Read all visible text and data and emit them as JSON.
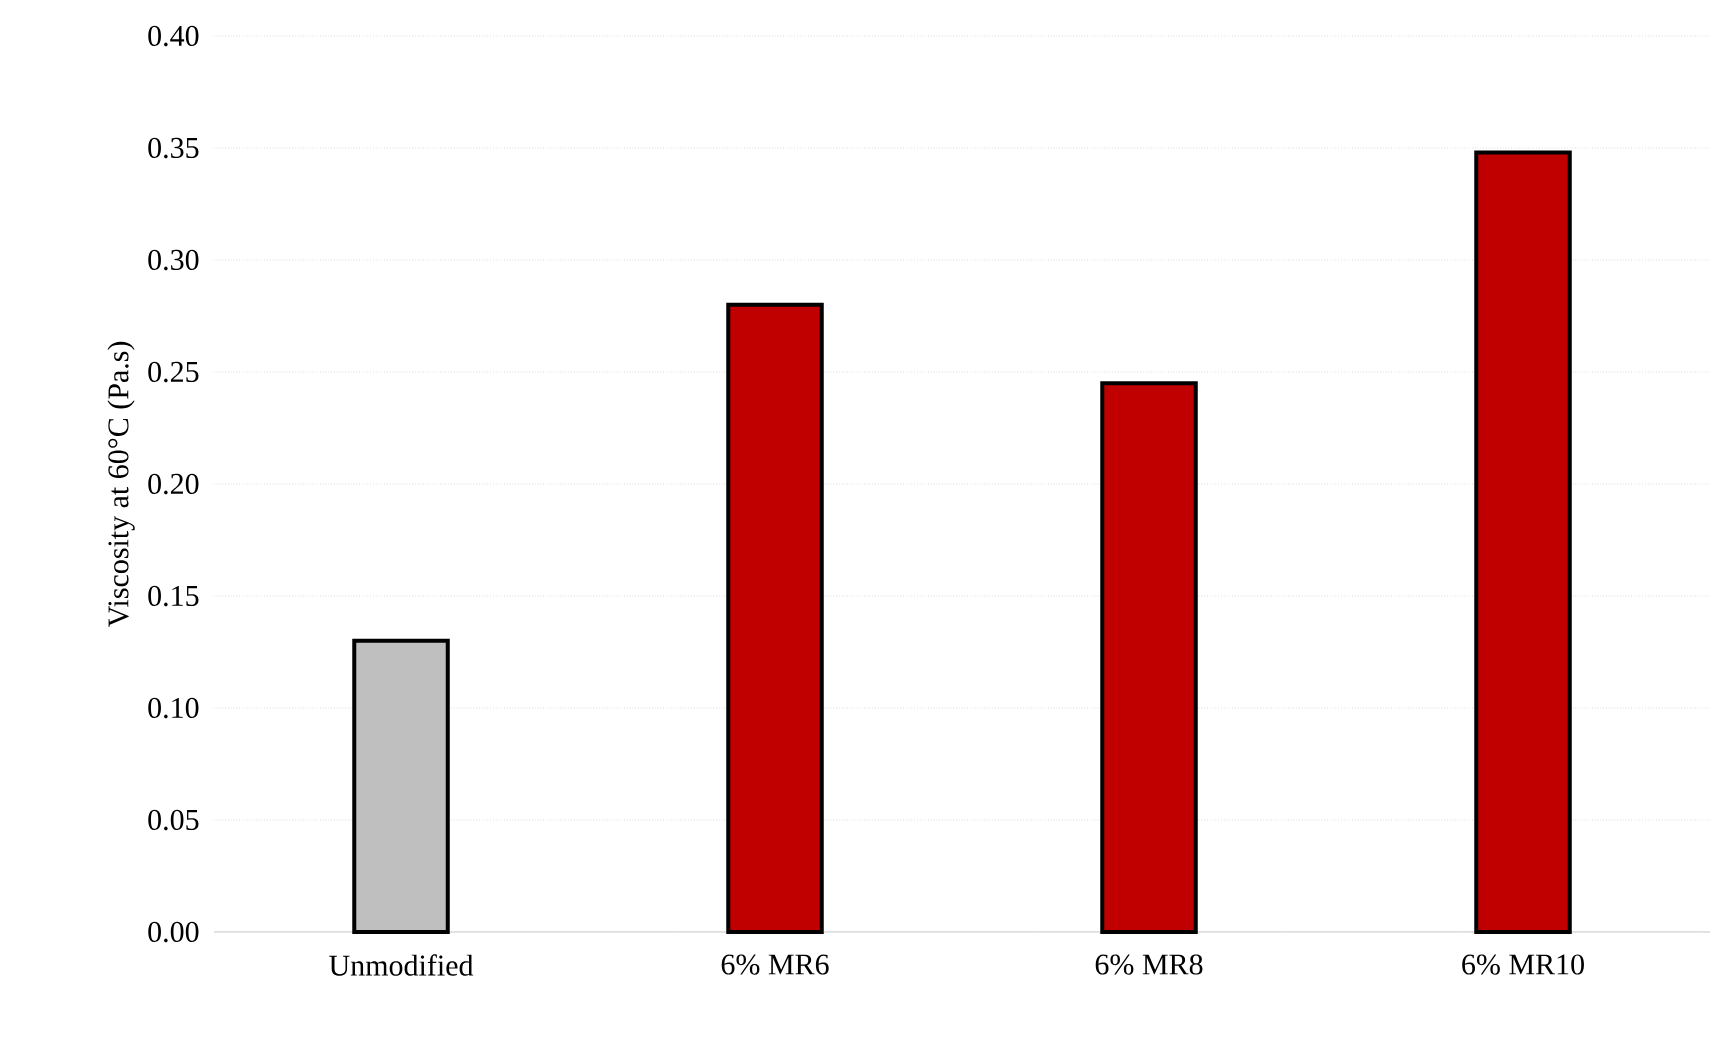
{
  "chart_data": {
    "type": "bar",
    "ylabel": "Viscosity  at 60°C (Pa.s)",
    "categories": [
      "Unmodified",
      "6% MR6",
      "6% MR8",
      "6% MR10"
    ],
    "values": [
      0.13,
      0.28,
      0.245,
      0.348
    ],
    "colors": [
      "#bfbfbf",
      "#c00000",
      "#c00000",
      "#c00000"
    ],
    "ylim": [
      0,
      0.4
    ],
    "yticks": [
      {
        "value": 0,
        "label": "0.00"
      },
      {
        "value": 0.05,
        "label": "0.05"
      },
      {
        "value": 0.1,
        "label": "0.10"
      },
      {
        "value": 0.15,
        "label": "0.15"
      },
      {
        "value": 0.2,
        "label": "0.20"
      },
      {
        "value": 0.25,
        "label": "0.25"
      },
      {
        "value": 0.3,
        "label": "0.30"
      },
      {
        "value": 0.35,
        "label": "0.35"
      },
      {
        "value": 0.4,
        "label": "0.40"
      }
    ],
    "grid": "y"
  }
}
